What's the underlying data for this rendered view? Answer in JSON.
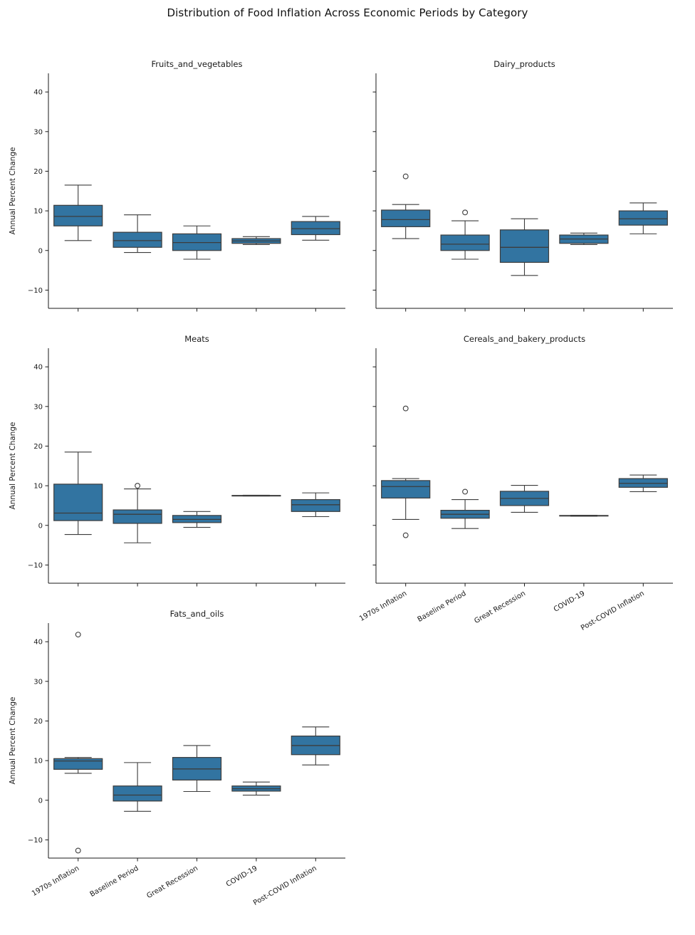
{
  "chart_data": {
    "type": "boxplot",
    "title": "Distribution of Food Inflation Across Economic Periods by Category",
    "ylabel": "Annual Percent Change",
    "categories": [
      "1970s Inflation",
      "Baseline Period",
      "Great Recession",
      "COVID-19",
      "Post-COVID Inflation"
    ],
    "yticks": [
      -10,
      0,
      10,
      20,
      30,
      40
    ],
    "ylim": [
      -14.6,
      44.7
    ],
    "grid": {
      "rows": 3,
      "cols": 2,
      "empty_cells": [
        "row3-col2"
      ],
      "gridlines": false,
      "legend": "none"
    },
    "colors": {
      "box_fill": "#3274A1",
      "line": "#3C3C3C",
      "spine": "#1A1A1A",
      "text": "#1A1A1A",
      "background": "#FFFFFF"
    },
    "subplots": [
      {
        "title": "Fruits_and_vegetables",
        "boxes": [
          {
            "period": "1970s Inflation",
            "whisker_low": 2.5,
            "q1": 6.2,
            "median": 8.6,
            "q3": 11.4,
            "whisker_high": 16.5,
            "outliers": []
          },
          {
            "period": "Baseline Period",
            "whisker_low": -0.5,
            "q1": 0.8,
            "median": 2.5,
            "q3": 4.6,
            "whisker_high": 9.0,
            "outliers": []
          },
          {
            "period": "Great Recession",
            "whisker_low": -2.2,
            "q1": 0.0,
            "median": 2.0,
            "q3": 4.2,
            "whisker_high": 6.2,
            "outliers": []
          },
          {
            "period": "COVID-19",
            "whisker_low": 1.5,
            "q1": 1.8,
            "median": 2.4,
            "q3": 3.0,
            "whisker_high": 3.5,
            "outliers": []
          },
          {
            "period": "Post-COVID Inflation",
            "whisker_low": 2.6,
            "q1": 4.0,
            "median": 5.5,
            "q3": 7.3,
            "whisker_high": 8.6,
            "outliers": []
          }
        ]
      },
      {
        "title": "Dairy_products",
        "boxes": [
          {
            "period": "1970s Inflation",
            "whisker_low": 3.0,
            "q1": 6.0,
            "median": 7.8,
            "q3": 10.2,
            "whisker_high": 11.6,
            "outliers": [
              18.7
            ]
          },
          {
            "period": "Baseline Period",
            "whisker_low": -2.2,
            "q1": 0.0,
            "median": 1.6,
            "q3": 3.9,
            "whisker_high": 7.5,
            "outliers": [
              9.6
            ]
          },
          {
            "period": "Great Recession",
            "whisker_low": -6.3,
            "q1": -3.0,
            "median": 0.8,
            "q3": 5.2,
            "whisker_high": 8.0,
            "outliers": []
          },
          {
            "period": "COVID-19",
            "whisker_low": 1.5,
            "q1": 1.8,
            "median": 2.9,
            "q3": 3.9,
            "whisker_high": 4.4,
            "outliers": []
          },
          {
            "period": "Post-COVID Inflation",
            "whisker_low": 4.2,
            "q1": 6.4,
            "median": 8.0,
            "q3": 10.0,
            "whisker_high": 12.0,
            "outliers": []
          }
        ]
      },
      {
        "title": "Meats",
        "boxes": [
          {
            "period": "1970s Inflation",
            "whisker_low": -2.3,
            "q1": 1.2,
            "median": 3.1,
            "q3": 10.4,
            "whisker_high": 18.5,
            "outliers": []
          },
          {
            "period": "Baseline Period",
            "whisker_low": -4.4,
            "q1": 0.5,
            "median": 2.8,
            "q3": 3.9,
            "whisker_high": 9.2,
            "outliers": [
              10.0
            ]
          },
          {
            "period": "Great Recession",
            "whisker_low": -0.5,
            "q1": 0.7,
            "median": 1.5,
            "q3": 2.5,
            "whisker_high": 3.5,
            "outliers": []
          },
          {
            "period": "COVID-19",
            "whisker_low": 7.4,
            "q1": 7.45,
            "median": 7.5,
            "q3": 7.55,
            "whisker_high": 7.6,
            "outliers": []
          },
          {
            "period": "Post-COVID Inflation",
            "whisker_low": 2.2,
            "q1": 3.5,
            "median": 5.2,
            "q3": 6.5,
            "whisker_high": 8.2,
            "outliers": []
          }
        ]
      },
      {
        "title": "Cereals_and_bakery_products",
        "boxes": [
          {
            "period": "1970s Inflation",
            "whisker_low": 1.5,
            "q1": 6.9,
            "median": 9.8,
            "q3": 11.3,
            "whisker_high": 11.8,
            "outliers": [
              29.5,
              -2.5
            ]
          },
          {
            "period": "Baseline Period",
            "whisker_low": -0.8,
            "q1": 1.8,
            "median": 2.8,
            "q3": 3.8,
            "whisker_high": 6.5,
            "outliers": [
              8.5
            ]
          },
          {
            "period": "Great Recession",
            "whisker_low": 3.3,
            "q1": 5.0,
            "median": 6.8,
            "q3": 8.6,
            "whisker_high": 10.1,
            "outliers": []
          },
          {
            "period": "COVID-19",
            "whisker_low": 2.3,
            "q1": 2.35,
            "median": 2.42,
            "q3": 2.5,
            "whisker_high": 2.55,
            "outliers": []
          },
          {
            "period": "Post-COVID Inflation",
            "whisker_low": 8.5,
            "q1": 9.6,
            "median": 10.6,
            "q3": 11.8,
            "whisker_high": 12.7,
            "outliers": []
          }
        ]
      },
      {
        "title": "Fats_and_oils",
        "boxes": [
          {
            "period": "1970s Inflation",
            "whisker_low": 6.8,
            "q1": 7.8,
            "median": 9.9,
            "q3": 10.5,
            "whisker_high": 10.8,
            "outliers": [
              41.8,
              -12.7
            ]
          },
          {
            "period": "Baseline Period",
            "whisker_low": -2.8,
            "q1": -0.2,
            "median": 1.3,
            "q3": 3.6,
            "whisker_high": 9.5,
            "outliers": []
          },
          {
            "period": "Great Recession",
            "whisker_low": 2.2,
            "q1": 5.1,
            "median": 7.9,
            "q3": 10.8,
            "whisker_high": 13.8,
            "outliers": []
          },
          {
            "period": "COVID-19",
            "whisker_low": 1.3,
            "q1": 2.3,
            "median": 2.9,
            "q3": 3.6,
            "whisker_high": 4.6,
            "outliers": []
          },
          {
            "period": "Post-COVID Inflation",
            "whisker_low": 8.9,
            "q1": 11.5,
            "median": 13.8,
            "q3": 16.2,
            "whisker_high": 18.5,
            "outliers": []
          }
        ]
      }
    ]
  }
}
